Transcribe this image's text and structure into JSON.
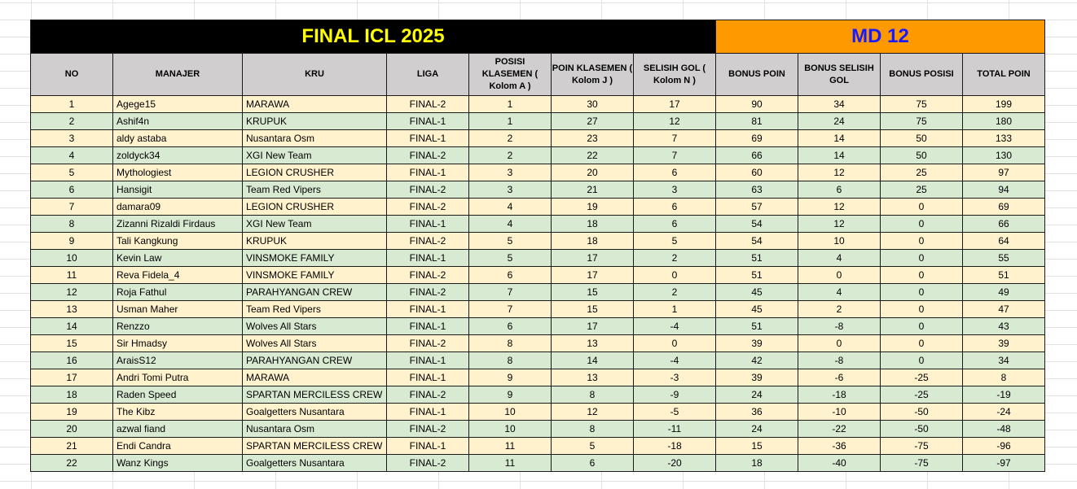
{
  "title_left": "FINAL ICL 2025",
  "title_right": "MD 12",
  "colors": {
    "title_bg": "#000000",
    "title_text": "#ffff00",
    "md_bg": "#ff9900",
    "md_text": "#1a1aff",
    "header_bg": "#d0cece",
    "row_odd": "#fff2cc",
    "row_even": "#d9ead3"
  },
  "headers": [
    "NO",
    "MANAJER",
    "KRU",
    "LIGA",
    "POSISI KLASEMEN ( Kolom A )",
    "POIN KLASEMEN ( Kolom J )",
    "SELISIH GOL ( Kolom N )",
    "BONUS POIN",
    "BONUS SELISIH GOL",
    "BONUS POSISI",
    "TOTAL POIN"
  ],
  "rows": [
    [
      "1",
      "Agege15",
      "MARAWA",
      "FINAL-2",
      "1",
      "30",
      "17",
      "90",
      "34",
      "75",
      "199"
    ],
    [
      "2",
      "Ashif4n",
      "KRUPUK",
      "FINAL-1",
      "1",
      "27",
      "12",
      "81",
      "24",
      "75",
      "180"
    ],
    [
      "3",
      "aldy astaba",
      "Nusantara Osm",
      "FINAL-1",
      "2",
      "23",
      "7",
      "69",
      "14",
      "50",
      "133"
    ],
    [
      "4",
      "zoldyck34",
      "XGI New Team",
      "FINAL-2",
      "2",
      "22",
      "7",
      "66",
      "14",
      "50",
      "130"
    ],
    [
      "5",
      "Mythologiest",
      "LEGION CRUSHER",
      "FINAL-1",
      "3",
      "20",
      "6",
      "60",
      "12",
      "25",
      "97"
    ],
    [
      "6",
      "Hansigit",
      "Team Red Vipers",
      "FINAL-2",
      "3",
      "21",
      "3",
      "63",
      "6",
      "25",
      "94"
    ],
    [
      "7",
      "damara09",
      "LEGION CRUSHER",
      "FINAL-2",
      "4",
      "19",
      "6",
      "57",
      "12",
      "0",
      "69"
    ],
    [
      "8",
      "Zizanni Rizaldi Firdaus",
      "XGI New Team",
      "FINAL-1",
      "4",
      "18",
      "6",
      "54",
      "12",
      "0",
      "66"
    ],
    [
      "9",
      "Tali Kangkung",
      "KRUPUK",
      "FINAL-2",
      "5",
      "18",
      "5",
      "54",
      "10",
      "0",
      "64"
    ],
    [
      "10",
      "Kevin Law",
      "VINSMOKE FAMILY",
      "FINAL-1",
      "5",
      "17",
      "2",
      "51",
      "4",
      "0",
      "55"
    ],
    [
      "11",
      "Reva Fidela_4",
      "VINSMOKE FAMILY",
      "FINAL-2",
      "6",
      "17",
      "0",
      "51",
      "0",
      "0",
      "51"
    ],
    [
      "12",
      "Roja Fathul",
      "PARAHYANGAN CREW",
      "FINAL-2",
      "7",
      "15",
      "2",
      "45",
      "4",
      "0",
      "49"
    ],
    [
      "13",
      "Usman Maher",
      "Team Red Vipers",
      "FINAL-1",
      "7",
      "15",
      "1",
      "45",
      "2",
      "0",
      "47"
    ],
    [
      "14",
      "Renzzo",
      "Wolves All Stars",
      "FINAL-1",
      "6",
      "17",
      "-4",
      "51",
      "-8",
      "0",
      "43"
    ],
    [
      "15",
      "Sir Hmadsy",
      "Wolves All Stars",
      "FINAL-2",
      "8",
      "13",
      "0",
      "39",
      "0",
      "0",
      "39"
    ],
    [
      "16",
      "AraisS12",
      "PARAHYANGAN CREW",
      "FINAL-1",
      "8",
      "14",
      "-4",
      "42",
      "-8",
      "0",
      "34"
    ],
    [
      "17",
      "Andri Tomi Putra",
      "MARAWA",
      "FINAL-1",
      "9",
      "13",
      "-3",
      "39",
      "-6",
      "-25",
      "8"
    ],
    [
      "18",
      "Raden Speed",
      "SPARTAN MERCILESS CREW",
      "FINAL-2",
      "9",
      "8",
      "-9",
      "24",
      "-18",
      "-25",
      "-19"
    ],
    [
      "19",
      "The Kibz",
      "Goalgetters Nusantara",
      "FINAL-1",
      "10",
      "12",
      "-5",
      "36",
      "-10",
      "-50",
      "-24"
    ],
    [
      "20",
      "azwal fiand",
      "Nusantara Osm",
      "FINAL-2",
      "10",
      "8",
      "-11",
      "24",
      "-22",
      "-50",
      "-48"
    ],
    [
      "21",
      "Endi Candra",
      "SPARTAN MERCILESS CREW",
      "FINAL-1",
      "11",
      "5",
      "-18",
      "15",
      "-36",
      "-75",
      "-96"
    ],
    [
      "22",
      "Wanz Kings",
      "Goalgetters Nusantara",
      "FINAL-2",
      "11",
      "6",
      "-20",
      "18",
      "-40",
      "-75",
      "-97"
    ]
  ]
}
